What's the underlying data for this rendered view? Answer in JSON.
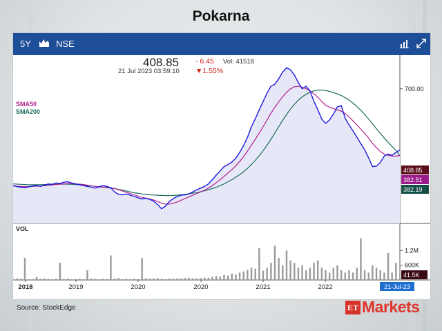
{
  "page": {
    "title": "Pokarna"
  },
  "toolbar": {
    "period": "5Y",
    "exchange": "NSE",
    "icons": [
      "area-chart-icon",
      "bar-chart-icon",
      "expand-icon"
    ]
  },
  "quote": {
    "price": "408.85",
    "datetime": "21 Jul 2023 03:59:10",
    "change": "- 6.45",
    "volume_label": "Vol: 41518",
    "change_pct": "▼1.55%"
  },
  "legend": {
    "sma50": "SMA50",
    "sma200": "SMA200"
  },
  "volume_panel": {
    "label": "VOL"
  },
  "colors": {
    "toolbar": "#1f4e99",
    "price": "#1a1adf",
    "sma50": "#b0208e",
    "sma200": "#1b6b5e",
    "area": "#e7e8f7",
    "red": "#d0221c"
  },
  "chart_data": {
    "type": "line",
    "x_ticks": [
      "2018",
      "2019",
      "2020",
      "2020",
      "2021",
      "2022",
      "21-Jul-23"
    ],
    "price_axis_ticks": [
      {
        "label": "700.00",
        "value": 700
      }
    ],
    "volume_axis_ticks": [
      {
        "label": "1.2M",
        "value": 1200000
      },
      {
        "label": "600K",
        "value": 600000
      }
    ],
    "ylim": [
      60,
      860
    ],
    "volume_ylim": [
      0,
      1800000
    ],
    "value_tags": [
      {
        "label": "408.85",
        "value": 408.85,
        "color": "#5a0f1a"
      },
      {
        "label": "382.51",
        "value": 382.51,
        "color": "#9c1a8a"
      },
      {
        "label": "382.19",
        "value": 382.19,
        "color": "#124f44"
      }
    ],
    "volume_tag": {
      "label": "41.5K",
      "value": 41500
    },
    "series": [
      {
        "name": "Price",
        "values": [
          240,
          235,
          232,
          230,
          234,
          238,
          240,
          236,
          242,
          248,
          246,
          252,
          250,
          256,
          258,
          252,
          248,
          244,
          240,
          236,
          232,
          228,
          234,
          240,
          236,
          230,
          210,
          198,
          196,
          200,
          194,
          188,
          182,
          176,
          180,
          174,
          166,
          150,
          130,
          142,
          165,
          178,
          188,
          194,
          196,
          200,
          210,
          220,
          228,
          236,
          248,
          268,
          290,
          310,
          330,
          340,
          352,
          370,
          398,
          430,
          470,
          520,
          558,
          600,
          640,
          680,
          712,
          722,
          748,
          780,
          800,
          790,
          766,
          730,
          700,
          712,
          690,
          640,
          600,
          556,
          536,
          552,
          580,
          614,
          620,
          560,
          528,
          500,
          470,
          440,
          410,
          372,
          330,
          332,
          350,
          380,
          390,
          384,
          398,
          408.85
        ]
      },
      {
        "name": "SMA50",
        "values": [
          238,
          237,
          236,
          235,
          235,
          236,
          237,
          238,
          239,
          241,
          243,
          245,
          247,
          248,
          249,
          249,
          248,
          247,
          245,
          242,
          239,
          236,
          234,
          233,
          232,
          230,
          226,
          220,
          214,
          208,
          202,
          196,
          190,
          184,
          180,
          176,
          171,
          164,
          156,
          152,
          152,
          156,
          162,
          170,
          178,
          186,
          194,
          202,
          210,
          218,
          228,
          240,
          254,
          268,
          284,
          300,
          316,
          334,
          354,
          378,
          404,
          432,
          460,
          490,
          520,
          552,
          584,
          612,
          638,
          662,
          684,
          700,
          710,
          712,
          708,
          700,
          690,
          676,
          660,
          640,
          622,
          612,
          606,
          600,
          594,
          582,
          566,
          548,
          528,
          508,
          488,
          466,
          440,
          420,
          402,
          390,
          384,
          380,
          380,
          382.51
        ]
      },
      {
        "name": "SMA200",
        "values": [
          248,
          247,
          246,
          245,
          244,
          244,
          244,
          244,
          245,
          245,
          246,
          246,
          247,
          247,
          247,
          246,
          245,
          244,
          242,
          240,
          238,
          236,
          234,
          232,
          230,
          228,
          226,
          222,
          218,
          214,
          210,
          206,
          203,
          200,
          198,
          196,
          195,
          194,
          193,
          192,
          192,
          193,
          194,
          196,
          198,
          201,
          204,
          207,
          211,
          215,
          220,
          226,
          232,
          240,
          248,
          258,
          268,
          280,
          292,
          306,
          322,
          340,
          360,
          382,
          406,
          432,
          460,
          490,
          520,
          550,
          578,
          604,
          626,
          646,
          662,
          674,
          684,
          690,
          694,
          694,
          692,
          688,
          682,
          676,
          668,
          658,
          646,
          632,
          616,
          598,
          578,
          556,
          534,
          510,
          488,
          466,
          446,
          426,
          408,
          382.19
        ]
      }
    ],
    "volume": [
      40,
      60,
      50,
      900,
      30,
      40,
      120,
      50,
      60,
      40,
      30,
      50,
      700,
      40,
      60,
      30,
      40,
      50,
      30,
      400,
      60,
      40,
      30,
      50,
      40,
      1000,
      60,
      80,
      40,
      50,
      30,
      60,
      40,
      900,
      70,
      50,
      60,
      80,
      50,
      40,
      60,
      50,
      70,
      60,
      80,
      90,
      60,
      70,
      80,
      100,
      90,
      120,
      160,
      140,
      200,
      180,
      260,
      220,
      300,
      350,
      420,
      500,
      460,
      1300,
      380,
      500,
      700,
      1400,
      900,
      600,
      1200,
      800,
      700,
      500,
      600,
      400,
      500,
      700,
      800,
      500,
      400,
      300,
      500,
      600,
      400,
      300,
      400,
      300,
      500,
      1700,
      400,
      300,
      600,
      500,
      400,
      300,
      1100,
      300,
      700,
      41.5
    ]
  },
  "footer": {
    "source": "Source:  StockEdge",
    "brand_et": "ET",
    "brand_markets": "Markets"
  }
}
